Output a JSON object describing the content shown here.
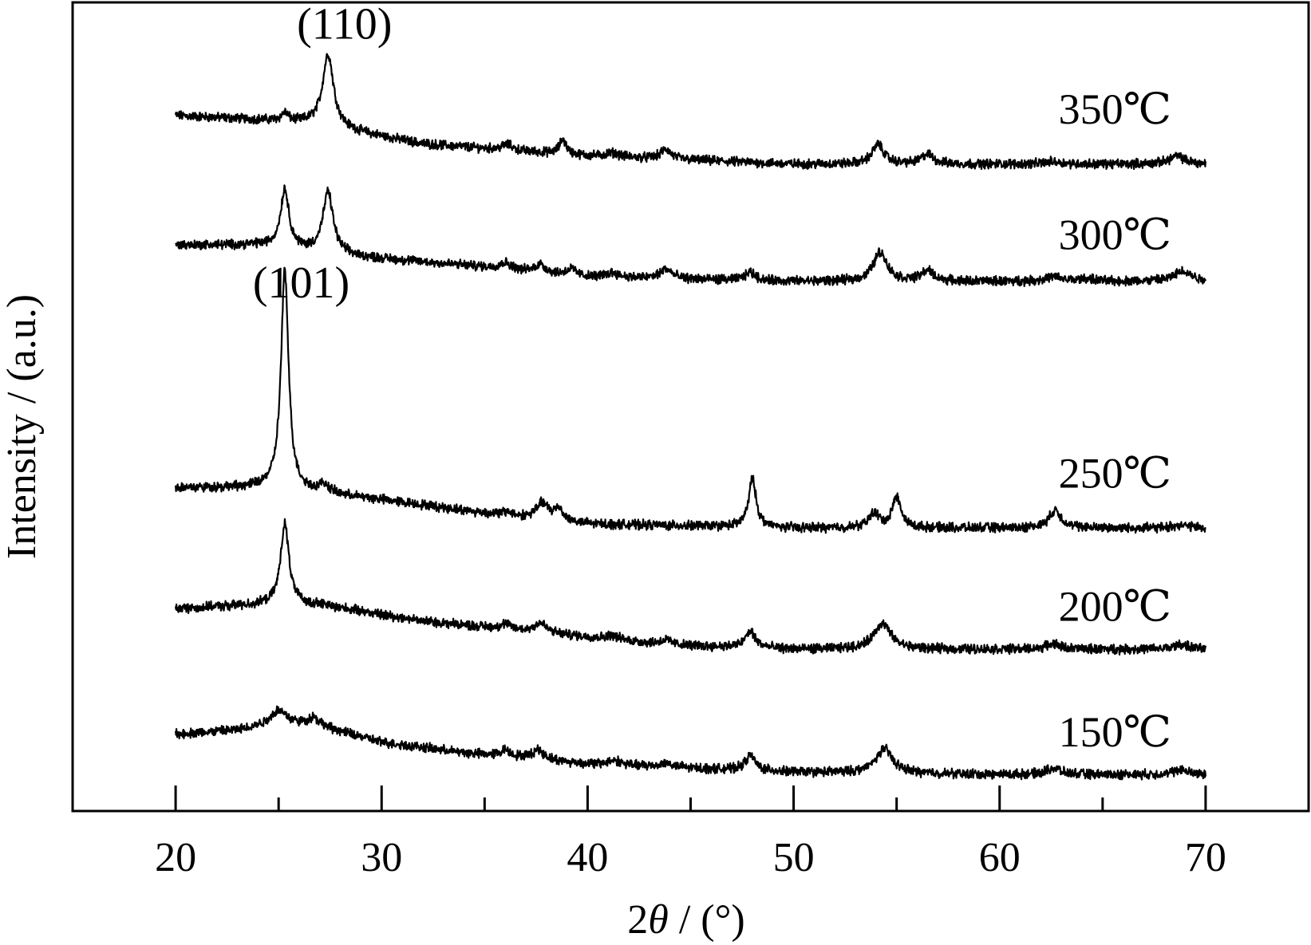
{
  "chart_data": {
    "type": "line",
    "title": "",
    "xlabel_prefix": "2",
    "xlabel_symbol": "θ",
    "xlabel_suffix": " / (°)",
    "ylabel": "Intensity / (a.u.)",
    "xlim": [
      15,
      75
    ],
    "ylim": [
      0,
      10
    ],
    "x_ticks": [
      20,
      30,
      40,
      50,
      60,
      70
    ],
    "minor_ticks": [
      25,
      35,
      45,
      55,
      65
    ],
    "y_ticks_shown": false,
    "grid": false,
    "legend": "none",
    "annotations": [
      {
        "text": "(110)",
        "x": 28.2,
        "y": 9.55
      },
      {
        "text": "(101)",
        "x": 26.1,
        "y": 6.35
      }
    ],
    "series": [
      {
        "name": "350℃",
        "label_at": {
          "x": 65.6,
          "y": 8.5
        },
        "baseline": [
          [
            20,
            8.6
          ],
          [
            24,
            8.55
          ],
          [
            26.5,
            8.5
          ],
          [
            32,
            8.25
          ],
          [
            40,
            8.1
          ],
          [
            50,
            8.0
          ],
          [
            60,
            8.0
          ],
          [
            70,
            8.0
          ]
        ],
        "peaks": [
          [
            25.3,
            0.1,
            0.2
          ],
          [
            27.4,
            0.9,
            0.32
          ],
          [
            36.1,
            0.07,
            0.3
          ],
          [
            38.8,
            0.18,
            0.2
          ],
          [
            41.2,
            0.05,
            0.4
          ],
          [
            43.8,
            0.12,
            0.3
          ],
          [
            54.1,
            0.24,
            0.35
          ],
          [
            56.5,
            0.12,
            0.35
          ],
          [
            62.6,
            0.03,
            0.5
          ],
          [
            68.6,
            0.1,
            0.45
          ]
        ]
      },
      {
        "name": "300℃",
        "label_at": {
          "x": 65.6,
          "y": 6.95
        },
        "baseline": [
          [
            20,
            7.0
          ],
          [
            24,
            7.0
          ],
          [
            29,
            6.85
          ],
          [
            34,
            6.75
          ],
          [
            40,
            6.6
          ],
          [
            50,
            6.55
          ],
          [
            60,
            6.55
          ],
          [
            70,
            6.55
          ]
        ],
        "peaks": [
          [
            25.3,
            0.72,
            0.25
          ],
          [
            27.4,
            0.75,
            0.3
          ],
          [
            36.0,
            0.08,
            0.35
          ],
          [
            37.7,
            0.1,
            0.3
          ],
          [
            39.2,
            0.08,
            0.3
          ],
          [
            41.2,
            0.06,
            0.4
          ],
          [
            43.8,
            0.12,
            0.35
          ],
          [
            47.9,
            0.1,
            0.3
          ],
          [
            54.2,
            0.36,
            0.4
          ],
          [
            56.5,
            0.13,
            0.35
          ],
          [
            62.6,
            0.05,
            0.5
          ],
          [
            64.2,
            0.03,
            0.4
          ],
          [
            68.9,
            0.13,
            0.5
          ]
        ]
      },
      {
        "name": "250℃",
        "label_at": {
          "x": 65.6,
          "y": 4.0
        },
        "baseline": [
          [
            20,
            4.0
          ],
          [
            24.5,
            4.0
          ],
          [
            30,
            3.85
          ],
          [
            36,
            3.65
          ],
          [
            40,
            3.55
          ],
          [
            50,
            3.5
          ],
          [
            60,
            3.5
          ],
          [
            70,
            3.5
          ]
        ],
        "peaks": [
          [
            25.3,
            2.7,
            0.22
          ],
          [
            27.2,
            0.1,
            0.3
          ],
          [
            36.1,
            0.05,
            0.3
          ],
          [
            37.8,
            0.2,
            0.35
          ],
          [
            38.6,
            0.15,
            0.25
          ],
          [
            48.0,
            0.6,
            0.22
          ],
          [
            53.9,
            0.18,
            0.3
          ],
          [
            55.0,
            0.38,
            0.25
          ],
          [
            62.7,
            0.22,
            0.35
          ],
          [
            68.8,
            0.04,
            0.4
          ]
        ]
      },
      {
        "name": "200℃",
        "label_at": {
          "x": 65.6,
          "y": 2.35
        },
        "baseline": [
          [
            20,
            2.5
          ],
          [
            24,
            2.55
          ],
          [
            27,
            2.55
          ],
          [
            32,
            2.35
          ],
          [
            38,
            2.2
          ],
          [
            44,
            2.05
          ],
          [
            50,
            2.0
          ],
          [
            60,
            2.0
          ],
          [
            70,
            2.0
          ]
        ],
        "peaks": [
          [
            25.3,
            1.0,
            0.25
          ],
          [
            36.0,
            0.06,
            0.3
          ],
          [
            37.7,
            0.12,
            0.35
          ],
          [
            41.2,
            0.05,
            0.4
          ],
          [
            43.8,
            0.06,
            0.35
          ],
          [
            47.9,
            0.2,
            0.3
          ],
          [
            54.3,
            0.32,
            0.5
          ],
          [
            62.6,
            0.07,
            0.4
          ],
          [
            68.8,
            0.06,
            0.4
          ]
        ]
      },
      {
        "name": "150℃",
        "label_at": {
          "x": 65.6,
          "y": 0.8
        },
        "baseline": [
          [
            20,
            0.95
          ],
          [
            23,
            1.0
          ],
          [
            25,
            1.1
          ],
          [
            27,
            1.05
          ],
          [
            30,
            0.85
          ],
          [
            34,
            0.72
          ],
          [
            40,
            0.58
          ],
          [
            50,
            0.48
          ],
          [
            60,
            0.45
          ],
          [
            70,
            0.45
          ]
        ],
        "peaks": [
          [
            25.0,
            0.15,
            0.45
          ],
          [
            26.7,
            0.1,
            0.3
          ],
          [
            36.0,
            0.08,
            0.3
          ],
          [
            37.6,
            0.12,
            0.35
          ],
          [
            41.3,
            0.06,
            0.4
          ],
          [
            43.8,
            0.05,
            0.35
          ],
          [
            47.9,
            0.18,
            0.3
          ],
          [
            54.4,
            0.3,
            0.5
          ],
          [
            62.6,
            0.08,
            0.4
          ],
          [
            68.8,
            0.06,
            0.4
          ]
        ]
      }
    ]
  }
}
